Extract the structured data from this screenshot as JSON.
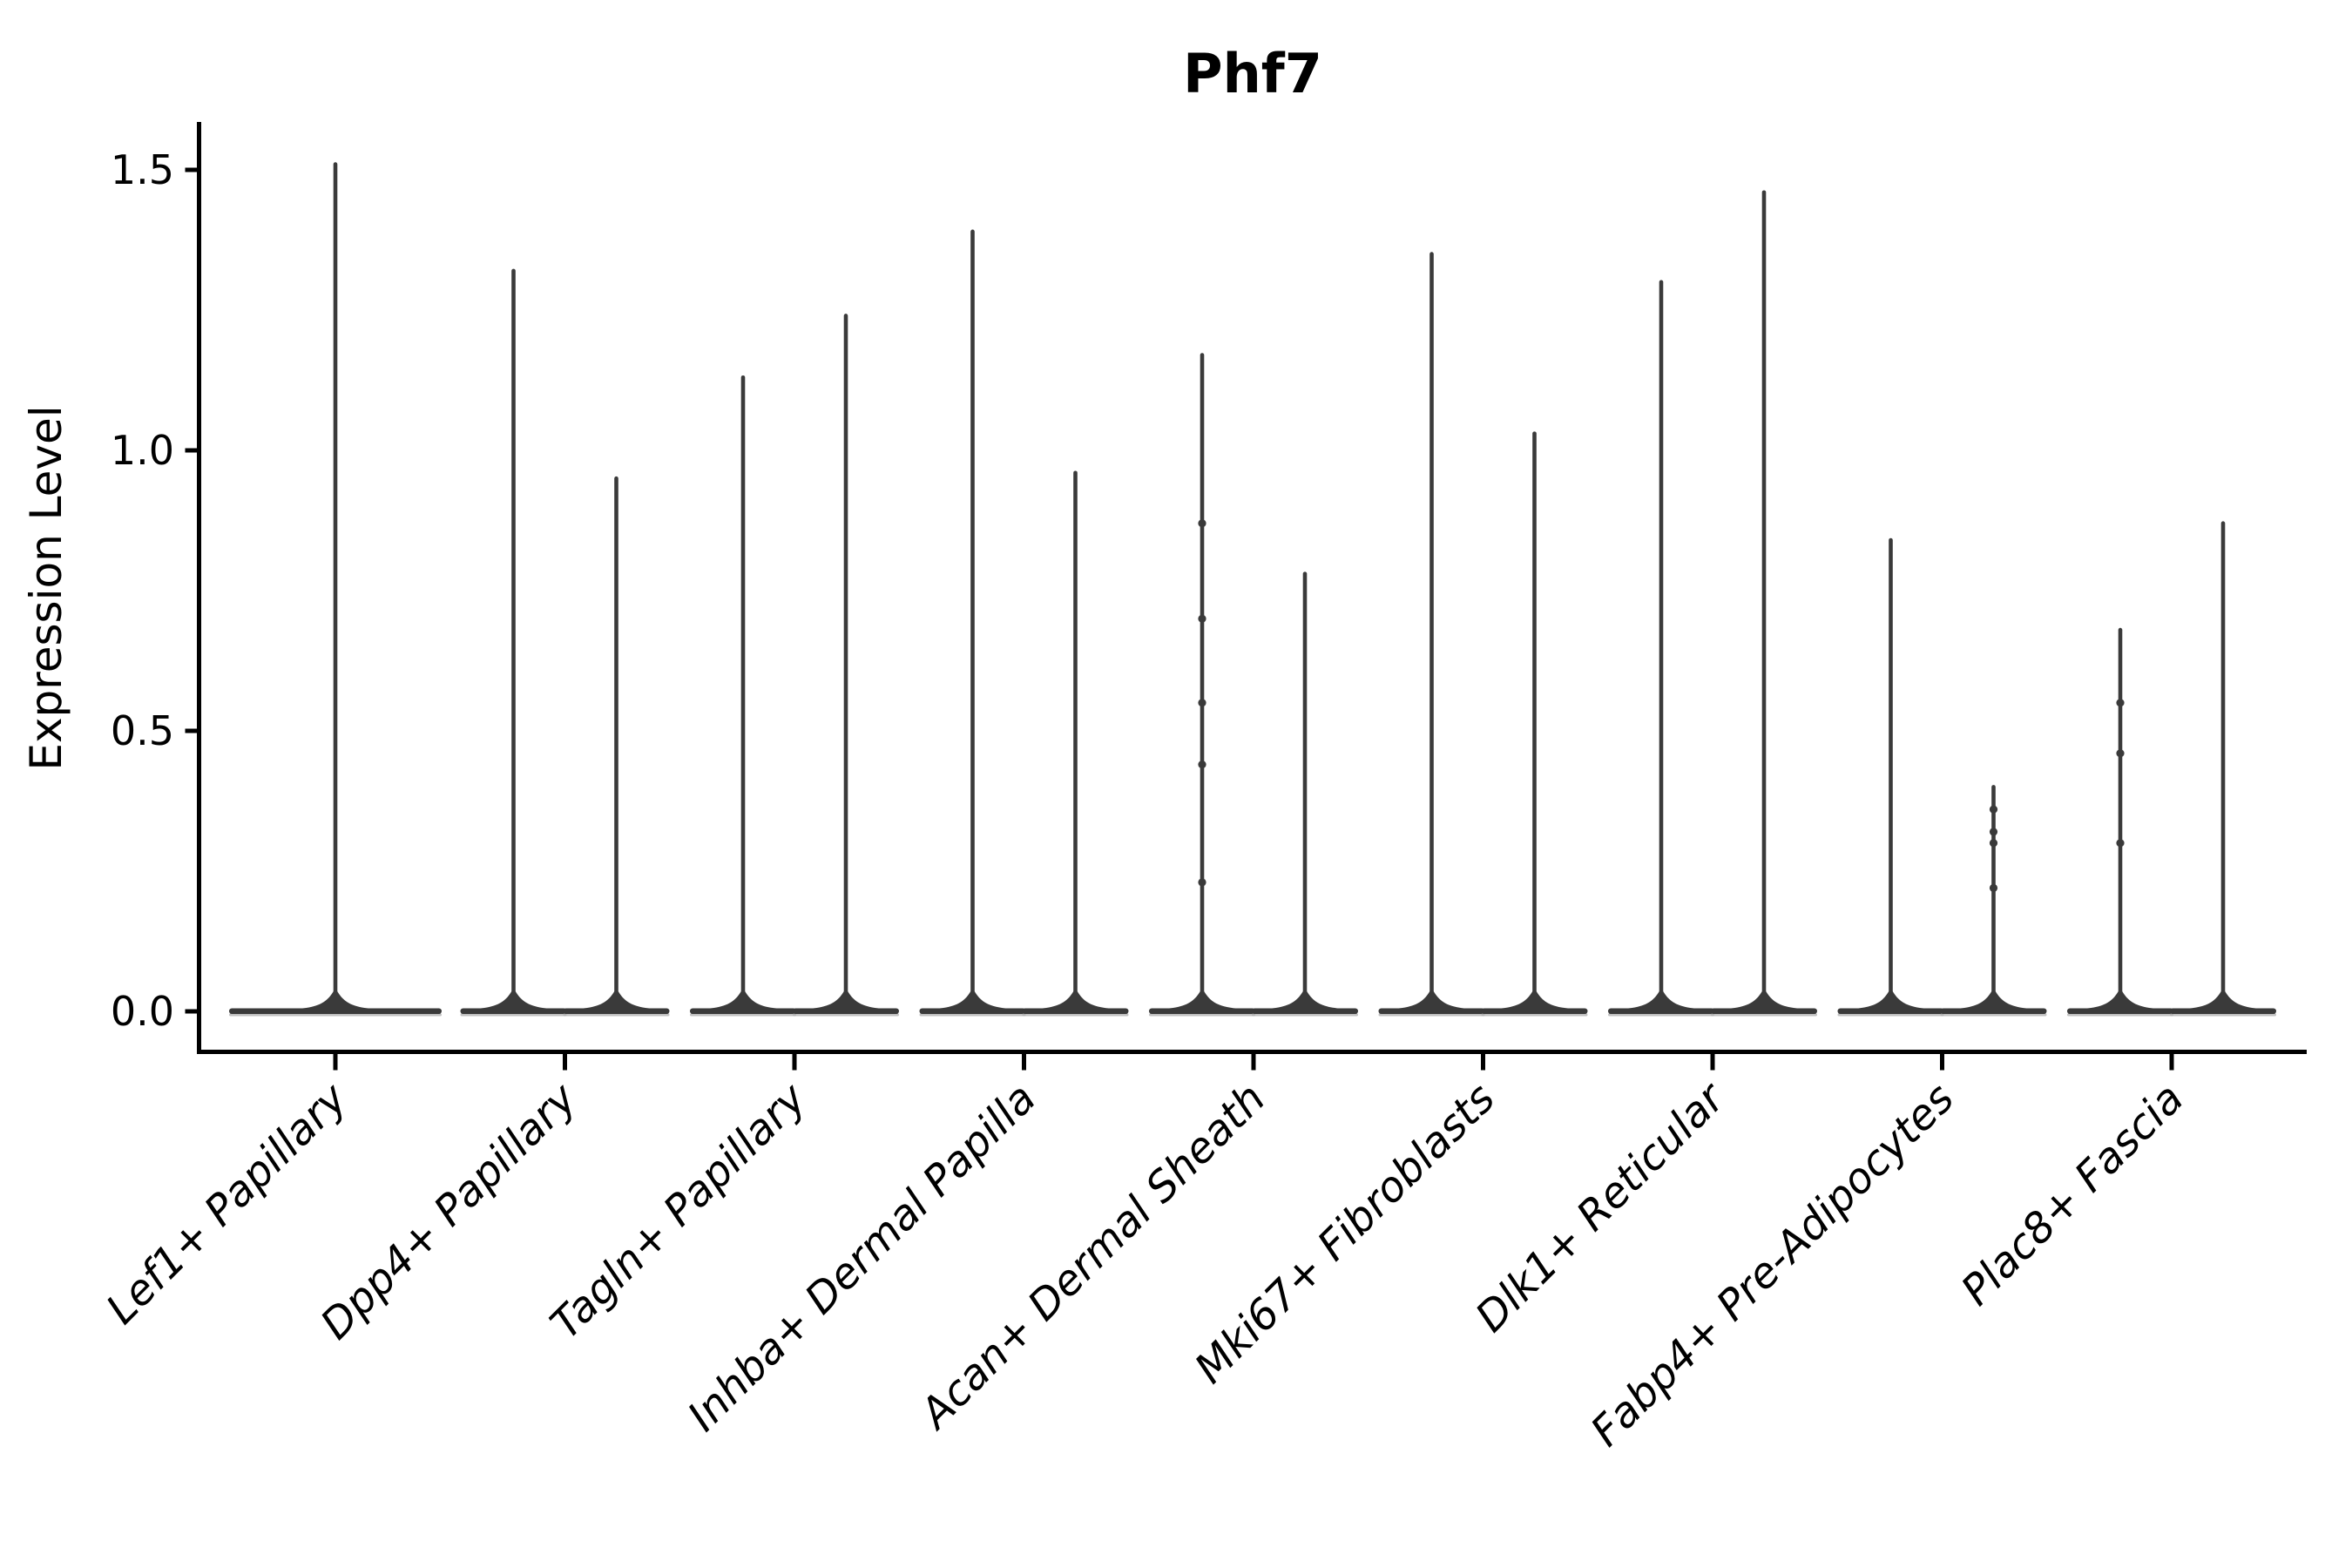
{
  "title": "Phf7",
  "y_axis": {
    "label": "Expression Level",
    "tick_labels": [
      "0.0",
      "0.5",
      "1.0",
      "1.5"
    ],
    "tick_values": [
      0.0,
      0.5,
      1.0,
      1.5
    ]
  },
  "colors": {
    "violin": "#3a3a3a",
    "violin_fringe": "#adadad",
    "axis": "#000000",
    "background": "#ffffff"
  },
  "chart_data": {
    "type": "violin",
    "title": "Phf7",
    "xlabel": "",
    "ylabel": "Expression Level",
    "ylim": [
      -0.07,
      1.58
    ],
    "y_ticks": [
      0.0,
      0.5,
      1.0,
      1.5
    ],
    "grid": false,
    "legend": "none",
    "style": "wide flat density base at 0 with a thin spike up to the max expression value; two violins per category except the first, which has a single centered violin",
    "categories": [
      "Lef1+ Papillary",
      "Dpp4+ Papillary",
      "Tagln+ Papillary",
      "Inhba+ Dermal Papilla",
      "Acan+ Dermal Sheath",
      "Mki67+ Fibroblasts",
      "Dlk1+ Reticular",
      "Fabp4+ Pre-Adipocytes",
      "Plac8+ Fascia"
    ],
    "violins": [
      {
        "category": "Lef1+ Papillary",
        "position": "center",
        "max": 1.51,
        "points": []
      },
      {
        "category": "Dpp4+ Papillary",
        "position": "left",
        "max": 1.32,
        "points": []
      },
      {
        "category": "Dpp4+ Papillary",
        "position": "right",
        "max": 0.95,
        "points": []
      },
      {
        "category": "Tagln+ Papillary",
        "position": "left",
        "max": 1.13,
        "points": []
      },
      {
        "category": "Tagln+ Papillary",
        "position": "right",
        "max": 1.24,
        "points": []
      },
      {
        "category": "Inhba+ Dermal Papilla",
        "position": "left",
        "max": 1.39,
        "points": []
      },
      {
        "category": "Inhba+ Dermal Papilla",
        "position": "right",
        "max": 0.96,
        "points": []
      },
      {
        "category": "Acan+ Dermal Sheath",
        "position": "left",
        "max": 1.17,
        "points": [
          0.87,
          0.7,
          0.55,
          0.44,
          0.23
        ]
      },
      {
        "category": "Acan+ Dermal Sheath",
        "position": "right",
        "max": 0.78,
        "points": []
      },
      {
        "category": "Mki67+ Fibroblasts",
        "position": "left",
        "max": 1.35,
        "points": []
      },
      {
        "category": "Mki67+ Fibroblasts",
        "position": "right",
        "max": 1.03,
        "points": []
      },
      {
        "category": "Dlk1+ Reticular",
        "position": "left",
        "max": 1.3,
        "points": []
      },
      {
        "category": "Dlk1+ Reticular",
        "position": "right",
        "max": 1.46,
        "points": []
      },
      {
        "category": "Fabp4+ Pre-Adipocytes",
        "position": "left",
        "max": 0.84,
        "points": []
      },
      {
        "category": "Fabp4+ Pre-Adipocytes",
        "position": "right",
        "max": 0.4,
        "points": [
          0.36,
          0.32,
          0.3,
          0.22
        ]
      },
      {
        "category": "Plac8+ Fascia",
        "position": "left",
        "max": 0.68,
        "points": [
          0.55,
          0.46,
          0.3
        ]
      },
      {
        "category": "Plac8+ Fascia",
        "position": "right",
        "max": 0.87,
        "points": []
      }
    ]
  }
}
